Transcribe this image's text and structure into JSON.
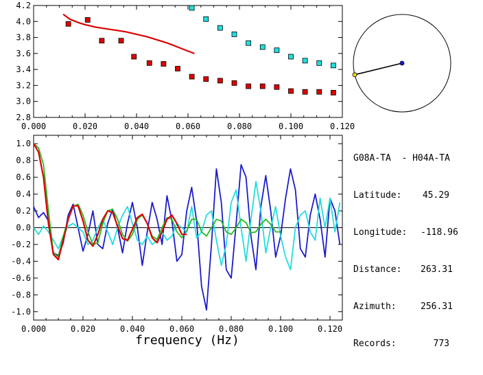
{
  "station_info": {
    "pair": "G08A-TA  - H04A-TA",
    "rows": [
      {
        "label": "Latitude:",
        "value": "45.29"
      },
      {
        "label": "Longitude:",
        "value": "-118.96"
      },
      {
        "label": "Distance:",
        "value": "263.31"
      },
      {
        "label": "Azimuth:",
        "value": "256.31"
      },
      {
        "label": "Records:",
        "value": "773"
      }
    ]
  },
  "colors": {
    "red": "#dd0000",
    "cyan": "#22dddd",
    "blue": "#1a1acc",
    "green": "#22bb22",
    "axis": "#000000",
    "azimuth_point": "#ffdd00"
  },
  "azimuth_deg": 256.31,
  "chart_data": [
    {
      "type": "scatter",
      "xlim": [
        0.0,
        0.12
      ],
      "ylim": [
        2.8,
        4.2
      ],
      "x_ticks": [
        "0.000",
        "0.020",
        "0.040",
        "0.060",
        "0.080",
        "0.100",
        "0.120"
      ],
      "y_ticks": [
        "2.8",
        "3.0",
        "3.2",
        "3.4",
        "3.6",
        "3.8",
        "4.0",
        "4.2"
      ],
      "series": [
        {
          "color": "red",
          "kind": "points",
          "x": [
            0.0135,
            0.021,
            0.0265,
            0.034,
            0.039,
            0.045,
            0.0505,
            0.056,
            0.0615,
            0.067,
            0.0725,
            0.078,
            0.0835,
            0.089,
            0.0945,
            0.1,
            0.1055,
            0.111,
            0.1165
          ],
          "y": [
            3.97,
            4.02,
            3.76,
            3.76,
            3.56,
            3.48,
            3.47,
            3.41,
            3.31,
            3.28,
            3.26,
            3.23,
            3.19,
            3.19,
            3.18,
            3.13,
            3.12,
            3.12,
            3.11
          ]
        },
        {
          "color": "cyan",
          "kind": "points",
          "x": [
            0.0615,
            0.067,
            0.0725,
            0.078,
            0.0835,
            0.089,
            0.0945,
            0.1,
            0.1055,
            0.111,
            0.1165
          ],
          "y": [
            4.17,
            4.03,
            3.92,
            3.84,
            3.73,
            3.68,
            3.64,
            3.56,
            3.51,
            3.48,
            3.45
          ]
        },
        {
          "color": "red",
          "kind": "line",
          "x": [
            0.0115,
            0.014,
            0.017,
            0.02,
            0.024,
            0.028,
            0.032,
            0.036,
            0.04,
            0.044,
            0.048,
            0.052,
            0.056,
            0.06,
            0.0625
          ],
          "y": [
            4.09,
            4.03,
            3.99,
            3.96,
            3.93,
            3.91,
            3.89,
            3.87,
            3.84,
            3.81,
            3.77,
            3.73,
            3.68,
            3.63,
            3.6
          ]
        }
      ]
    },
    {
      "type": "line",
      "xlabel": "frequency (Hz)",
      "xlim": [
        0.0,
        0.125
      ],
      "ylim": [
        -1.1,
        1.1
      ],
      "x_ticks": [
        "0.000",
        "0.020",
        "0.040",
        "0.060",
        "0.080",
        "0.100",
        "0.120"
      ],
      "y_ticks": [
        "-1.0",
        "-0.8",
        "-0.6",
        "-0.4",
        "-0.2",
        "0.0",
        "0.2",
        "0.4",
        "0.6",
        "0.8",
        "1.0"
      ],
      "series": [
        {
          "color": "blue",
          "x": [
            0.0,
            0.002,
            0.004,
            0.006,
            0.008,
            0.01,
            0.012,
            0.014,
            0.016,
            0.018,
            0.02,
            0.022,
            0.024,
            0.026,
            0.028,
            0.03,
            0.032,
            0.034,
            0.036,
            0.038,
            0.04,
            0.042,
            0.044,
            0.046,
            0.048,
            0.05,
            0.052,
            0.054,
            0.056,
            0.058,
            0.06,
            0.062,
            0.064,
            0.066,
            0.068,
            0.07,
            0.072,
            0.074,
            0.076,
            0.078,
            0.08,
            0.082,
            0.084,
            0.086,
            0.088,
            0.09,
            0.092,
            0.094,
            0.096,
            0.098,
            0.1,
            0.102,
            0.104,
            0.106,
            0.108,
            0.11,
            0.112,
            0.114,
            0.116,
            0.118,
            0.12,
            0.122,
            0.124
          ],
          "y": [
            0.25,
            0.12,
            0.18,
            0.08,
            -0.3,
            -0.33,
            -0.18,
            0.15,
            0.28,
            0.0,
            -0.28,
            -0.08,
            0.2,
            -0.2,
            -0.25,
            0.05,
            0.22,
            0.0,
            -0.3,
            0.05,
            0.3,
            0.0,
            -0.45,
            -0.05,
            0.3,
            0.1,
            -0.2,
            0.38,
            0.08,
            -0.4,
            -0.32,
            0.2,
            0.48,
            0.08,
            -0.7,
            -0.98,
            -0.2,
            0.7,
            0.3,
            -0.5,
            -0.6,
            0.05,
            0.75,
            0.6,
            -0.1,
            -0.5,
            0.25,
            0.62,
            0.2,
            -0.35,
            -0.1,
            0.35,
            0.7,
            0.45,
            -0.25,
            -0.35,
            0.15,
            0.4,
            0.1,
            -0.35,
            0.35,
            0.2,
            -0.2
          ]
        },
        {
          "color": "cyan",
          "x": [
            0.0,
            0.002,
            0.004,
            0.006,
            0.008,
            0.01,
            0.012,
            0.014,
            0.016,
            0.018,
            0.02,
            0.022,
            0.024,
            0.026,
            0.028,
            0.03,
            0.032,
            0.034,
            0.036,
            0.038,
            0.04,
            0.042,
            0.044,
            0.046,
            0.048,
            0.05,
            0.052,
            0.054,
            0.056,
            0.058,
            0.06,
            0.062,
            0.064,
            0.066,
            0.068,
            0.07,
            0.072,
            0.074,
            0.076,
            0.078,
            0.08,
            0.082,
            0.084,
            0.086,
            0.088,
            0.09,
            0.092,
            0.094,
            0.096,
            0.098,
            0.1,
            0.102,
            0.104,
            0.106,
            0.108,
            0.11,
            0.112,
            0.114,
            0.116,
            0.118,
            0.12,
            0.122,
            0.124
          ],
          "y": [
            0.0,
            -0.08,
            0.02,
            -0.05,
            -0.15,
            -0.25,
            -0.1,
            0.02,
            0.05,
            0.0,
            -0.05,
            -0.2,
            -0.15,
            0.0,
            0.1,
            -0.05,
            -0.2,
            0.0,
            0.15,
            0.25,
            0.05,
            -0.15,
            -0.2,
            -0.1,
            -0.2,
            -0.15,
            -0.05,
            -0.15,
            -0.1,
            0.05,
            0.0,
            -0.05,
            0.25,
            -0.12,
            -0.05,
            0.15,
            0.2,
            -0.15,
            -0.45,
            -0.2,
            0.3,
            0.45,
            0.0,
            -0.4,
            0.1,
            0.55,
            0.2,
            -0.3,
            0.0,
            0.25,
            -0.1,
            -0.35,
            -0.5,
            0.0,
            0.15,
            0.2,
            -0.05,
            -0.15,
            0.35,
            0.0,
            0.35,
            -0.05,
            0.3
          ]
        },
        {
          "color": "green",
          "x": [
            0.0,
            0.002,
            0.004,
            0.006,
            0.008,
            0.01,
            0.012,
            0.014,
            0.016,
            0.018,
            0.02,
            0.022,
            0.024,
            0.026,
            0.028,
            0.03,
            0.032,
            0.034,
            0.036,
            0.038,
            0.04,
            0.042,
            0.044,
            0.046,
            0.048,
            0.05,
            0.052,
            0.054,
            0.056,
            0.058,
            0.06,
            0.062,
            0.064,
            0.066,
            0.068,
            0.07,
            0.072,
            0.074,
            0.076,
            0.078,
            0.08,
            0.082,
            0.084,
            0.086,
            0.088,
            0.09,
            0.092,
            0.094,
            0.096,
            0.098,
            0.1
          ],
          "y": [
            1.0,
            0.95,
            0.75,
            0.2,
            -0.3,
            -0.35,
            -0.1,
            0.1,
            0.25,
            0.28,
            0.15,
            -0.05,
            -0.2,
            -0.18,
            0.05,
            0.2,
            0.22,
            0.1,
            -0.08,
            -0.16,
            -0.08,
            0.1,
            0.15,
            0.05,
            -0.1,
            -0.14,
            0.0,
            0.12,
            0.1,
            -0.05,
            -0.12,
            -0.04,
            0.1,
            0.1,
            -0.05,
            -0.1,
            0.0,
            0.1,
            0.08,
            -0.05,
            -0.08,
            0.0,
            0.1,
            0.06,
            -0.06,
            -0.05,
            0.04,
            0.1,
            0.04,
            -0.05,
            -0.05
          ]
        },
        {
          "color": "red",
          "x": [
            0.0,
            0.002,
            0.004,
            0.006,
            0.008,
            0.01,
            0.012,
            0.014,
            0.016,
            0.018,
            0.02,
            0.022,
            0.024,
            0.026,
            0.028,
            0.03,
            0.032,
            0.034,
            0.036,
            0.038,
            0.04,
            0.042,
            0.044,
            0.046,
            0.048,
            0.05,
            0.052,
            0.054,
            0.056,
            0.058,
            0.06,
            0.062
          ],
          "y": [
            1.0,
            0.9,
            0.6,
            0.05,
            -0.32,
            -0.38,
            -0.15,
            0.1,
            0.26,
            0.26,
            0.08,
            -0.15,
            -0.22,
            -0.08,
            0.1,
            0.2,
            0.18,
            0.02,
            -0.13,
            -0.15,
            -0.02,
            0.12,
            0.16,
            0.05,
            -0.12,
            -0.18,
            -0.05,
            0.1,
            0.15,
            0.05,
            -0.08,
            -0.08
          ]
        }
      ]
    }
  ]
}
